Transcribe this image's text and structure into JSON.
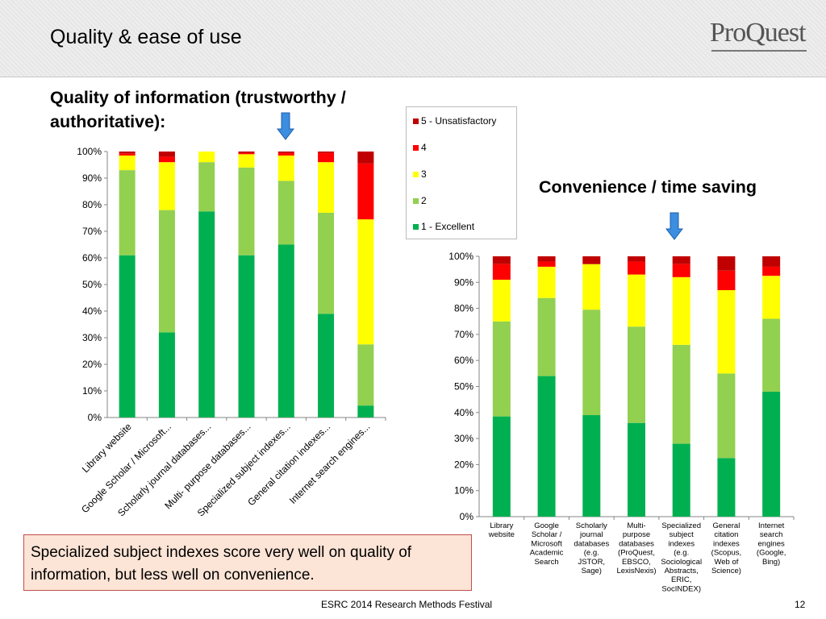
{
  "slide": {
    "title": "Quality & ease of use",
    "logo": "ProQuest",
    "footer": "ESRC 2014 Research Methods Festival",
    "page_number": "12",
    "callout": "Specialized subject indexes score very well on quality of information, but less well on convenience."
  },
  "colors": {
    "5": "#c00000",
    "4": "#ff0000",
    "3": "#ffff00",
    "2": "#92d050",
    "1": "#00b050",
    "arrow": "#3b8ee0"
  },
  "legend": [
    "5 - Unsatisfactory",
    "4",
    "3",
    "2",
    "1 - Excellent"
  ],
  "chart_data": [
    {
      "type": "bar",
      "stacked": true,
      "title": "Quality of information (trustworthy / authoritative):",
      "categories": [
        "Library website",
        "Google Scholar / Microsoft...",
        "Scholarly journal databases...",
        "Multi- purpose databases...",
        "Specialized  subject indexes...",
        "General citation indexes...",
        "Internet search engines..."
      ],
      "series": [
        {
          "name": "1 - Excellent",
          "values": [
            61,
            32,
            77.5,
            61,
            65,
            39,
            4.5
          ]
        },
        {
          "name": "2",
          "values": [
            32,
            46,
            18.5,
            33,
            24,
            38,
            23
          ]
        },
        {
          "name": "3",
          "values": [
            5.5,
            18,
            4,
            5,
            9.5,
            19,
            47
          ]
        },
        {
          "name": "4",
          "values": [
            0.8,
            2,
            0,
            0.5,
            1,
            3.5,
            21
          ]
        },
        {
          "name": "5 - Unsatisfactory",
          "values": [
            0.7,
            2,
            0,
            0.5,
            0.5,
            0.5,
            4.5
          ]
        }
      ],
      "yticks": [
        "0%",
        "10%",
        "20%",
        "30%",
        "40%",
        "50%",
        "60%",
        "70%",
        "80%",
        "90%",
        "100%"
      ],
      "ylim": [
        0,
        100
      ],
      "legend_position": "right",
      "highlighted_category": "Specialized  subject indexes..."
    },
    {
      "type": "bar",
      "stacked": true,
      "title": "Convenience / time saving",
      "categories": [
        [
          "Library",
          "website"
        ],
        [
          "Google",
          "Scholar /",
          "Microsoft",
          "Academic",
          "Search"
        ],
        [
          "Scholarly",
          "journal",
          "databases",
          "(e.g.",
          "JSTOR,",
          "Sage)"
        ],
        [
          "Multi-",
          "purpose",
          "databases",
          "(ProQuest,",
          "EBSCO,",
          "LexisNexis)"
        ],
        [
          "Specialized",
          "subject",
          "indexes",
          "(e.g.",
          "Sociological",
          "Abstracts,",
          "ERIC,",
          "SocINDEX)"
        ],
        [
          "General",
          "citation",
          "indexes",
          "(Scopus,",
          "Web of",
          "Science)"
        ],
        [
          "Internet",
          "search",
          "engines",
          "(Google,",
          "Bing)"
        ]
      ],
      "series": [
        {
          "name": "1 - Excellent",
          "values": [
            38.5,
            54,
            39,
            36,
            28,
            22.5,
            48
          ]
        },
        {
          "name": "2",
          "values": [
            36.5,
            30,
            40.5,
            37,
            38,
            32.5,
            28
          ]
        },
        {
          "name": "3",
          "values": [
            16,
            12,
            17.5,
            20,
            26,
            32,
            16.5
          ]
        },
        {
          "name": "4",
          "values": [
            6,
            2,
            0,
            5,
            5,
            7.5,
            3.5
          ]
        },
        {
          "name": "5 - Unsatisfactory",
          "values": [
            3,
            2,
            3,
            2,
            3,
            5.5,
            4
          ]
        }
      ],
      "yticks": [
        "0%",
        "10%",
        "20%",
        "30%",
        "40%",
        "50%",
        "60%",
        "70%",
        "80%",
        "90%",
        "100%"
      ],
      "ylim": [
        0,
        100
      ],
      "highlighted_category": "Specialized subject indexes (e.g. Sociological Abstracts, ERIC, SocINDEX)"
    }
  ]
}
